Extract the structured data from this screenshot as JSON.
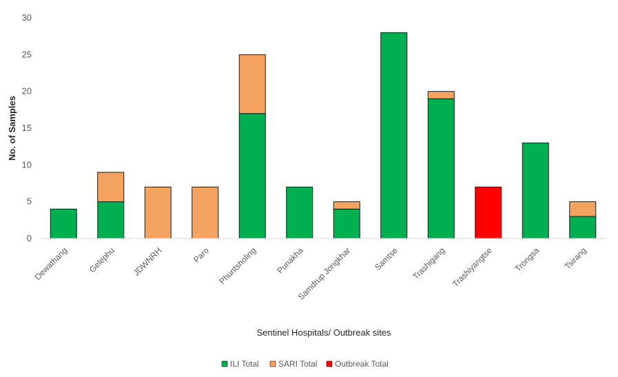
{
  "chart_data": {
    "type": "bar",
    "stacked": true,
    "categories": [
      "Dewathang",
      "Gelephu",
      "JDWNRH",
      "Paro",
      "Phuntsholing",
      "Punakha",
      "Samdrup Jongkhar",
      "Samtse",
      "Trashigang",
      "Trashiyangtse",
      "Trongsa",
      "Tsirang"
    ],
    "series": [
      {
        "name": "ILI Total",
        "color": "#00b050",
        "values": [
          4,
          5,
          0,
          0,
          17,
          7,
          4,
          28,
          19,
          0,
          13,
          3
        ]
      },
      {
        "name": "SARI Total",
        "color": "#f4a460",
        "values": [
          0,
          4,
          7,
          7,
          8,
          0,
          1,
          0,
          1,
          0,
          0,
          2
        ]
      },
      {
        "name": "Outbreak Total",
        "color": "#ff0000",
        "values": [
          0,
          0,
          0,
          0,
          0,
          0,
          0,
          0,
          0,
          7,
          0,
          0
        ]
      }
    ],
    "xlabel": "Sentinel Hospitals/ Outbreak sites",
    "ylabel": "No. of Samples",
    "ylim": [
      0,
      30
    ],
    "yticks": [
      0,
      5,
      10,
      15,
      20,
      25,
      30
    ],
    "grid": false,
    "legend_position": "bottom"
  }
}
